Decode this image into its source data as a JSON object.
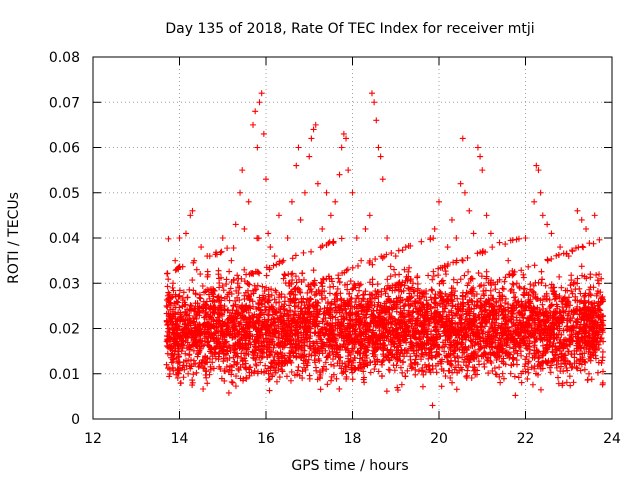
{
  "chart_data": {
    "type": "scatter",
    "title": "Day 135 of 2018, Rate Of TEC Index for receiver mtji",
    "xlabel": "GPS time / hours",
    "ylabel": "ROTI / TECUs",
    "xlim": [
      12,
      24
    ],
    "ylim": [
      0,
      0.08
    ],
    "xticks": [
      12,
      14,
      16,
      18,
      20,
      22,
      24
    ],
    "yticks": [
      0,
      0.01,
      0.02,
      0.03,
      0.04,
      0.05,
      0.06,
      0.07,
      0.08
    ],
    "ytick_labels": [
      "0",
      "0.01",
      "0.02",
      "0.03",
      "0.04",
      "0.05",
      "0.06",
      "0.07",
      "0.08"
    ],
    "grid": true,
    "marker": "+",
    "color": "#ff0000",
    "series": [
      {
        "name": "ROTI",
        "points": [
          [
            13.7,
            0.012
          ],
          [
            13.7,
            0.025
          ],
          [
            13.75,
            0.02
          ],
          [
            13.8,
            0.018
          ],
          [
            13.85,
            0.03
          ],
          [
            13.9,
            0.035
          ],
          [
            13.95,
            0.022
          ],
          [
            14.0,
            0.04
          ],
          [
            14.05,
            0.015
          ],
          [
            14.1,
            0.028
          ],
          [
            14.15,
            0.041
          ],
          [
            14.2,
            0.01
          ],
          [
            14.25,
            0.045
          ],
          [
            14.3,
            0.046
          ],
          [
            14.35,
            0.02
          ],
          [
            14.4,
            0.033
          ],
          [
            14.5,
            0.038
          ],
          [
            14.6,
            0.025
          ],
          [
            14.7,
            0.036
          ],
          [
            14.8,
            0.018
          ],
          [
            14.9,
            0.032
          ],
          [
            15.0,
            0.04
          ],
          [
            15.1,
            0.027
          ],
          [
            15.2,
            0.035
          ],
          [
            15.3,
            0.043
          ],
          [
            15.4,
            0.05
          ],
          [
            15.45,
            0.055
          ],
          [
            15.5,
            0.042
          ],
          [
            15.6,
            0.048
          ],
          [
            15.7,
            0.065
          ],
          [
            15.75,
            0.068
          ],
          [
            15.8,
            0.06
          ],
          [
            15.85,
            0.07
          ],
          [
            15.9,
            0.072
          ],
          [
            15.95,
            0.063
          ],
          [
            16.0,
            0.053
          ],
          [
            16.05,
            0.041
          ],
          [
            16.1,
            0.038
          ],
          [
            16.2,
            0.036
          ],
          [
            16.3,
            0.045
          ],
          [
            16.4,
            0.035
          ],
          [
            16.5,
            0.04
          ],
          [
            16.6,
            0.048
          ],
          [
            16.7,
            0.056
          ],
          [
            16.75,
            0.06
          ],
          [
            16.8,
            0.044
          ],
          [
            16.9,
            0.05
          ],
          [
            17.0,
            0.058
          ],
          [
            17.05,
            0.062
          ],
          [
            17.1,
            0.064
          ],
          [
            17.15,
            0.065
          ],
          [
            17.2,
            0.052
          ],
          [
            17.3,
            0.042
          ],
          [
            17.4,
            0.05
          ],
          [
            17.5,
            0.045
          ],
          [
            17.6,
            0.048
          ],
          [
            17.7,
            0.054
          ],
          [
            17.75,
            0.06
          ],
          [
            17.8,
            0.063
          ],
          [
            17.85,
            0.062
          ],
          [
            17.9,
            0.055
          ],
          [
            18.0,
            0.05
          ],
          [
            18.1,
            0.04
          ],
          [
            18.2,
            0.035
          ],
          [
            18.3,
            0.042
          ],
          [
            18.4,
            0.045
          ],
          [
            18.45,
            0.072
          ],
          [
            18.5,
            0.07
          ],
          [
            18.55,
            0.066
          ],
          [
            18.6,
            0.06
          ],
          [
            18.65,
            0.058
          ],
          [
            18.7,
            0.053
          ],
          [
            18.8,
            0.04
          ],
          [
            19.0,
            0.036
          ],
          [
            19.2,
            0.033
          ],
          [
            19.4,
            0.03
          ],
          [
            19.6,
            0.028
          ],
          [
            19.8,
            0.04
          ],
          [
            19.85,
            0.003
          ],
          [
            19.9,
            0.042
          ],
          [
            20.0,
            0.048
          ],
          [
            20.1,
            0.03
          ],
          [
            20.2,
            0.038
          ],
          [
            20.3,
            0.044
          ],
          [
            20.4,
            0.04
          ],
          [
            20.5,
            0.052
          ],
          [
            20.55,
            0.062
          ],
          [
            20.6,
            0.05
          ],
          [
            20.7,
            0.046
          ],
          [
            20.8,
            0.041
          ],
          [
            20.9,
            0.06
          ],
          [
            20.95,
            0.058
          ],
          [
            21.0,
            0.055
          ],
          [
            21.1,
            0.045
          ],
          [
            21.2,
            0.041
          ],
          [
            21.4,
            0.039
          ],
          [
            21.6,
            0.035
          ],
          [
            21.8,
            0.03
          ],
          [
            22.0,
            0.04
          ],
          [
            22.2,
            0.048
          ],
          [
            22.25,
            0.056
          ],
          [
            22.3,
            0.055
          ],
          [
            22.35,
            0.05
          ],
          [
            22.4,
            0.045
          ],
          [
            22.5,
            0.043
          ],
          [
            22.6,
            0.041
          ],
          [
            22.8,
            0.038
          ],
          [
            23.0,
            0.036
          ],
          [
            23.2,
            0.046
          ],
          [
            23.3,
            0.044
          ],
          [
            23.4,
            0.042
          ],
          [
            23.5,
            0.032
          ],
          [
            23.6,
            0.045
          ],
          [
            23.7,
            0.032
          ],
          [
            23.75,
            0.031
          ]
        ]
      }
    ],
    "background_density": {
      "x_range": [
        13.7,
        23.8
      ],
      "band_low": 0.005,
      "band_high": 0.035,
      "count": 5000
    }
  }
}
